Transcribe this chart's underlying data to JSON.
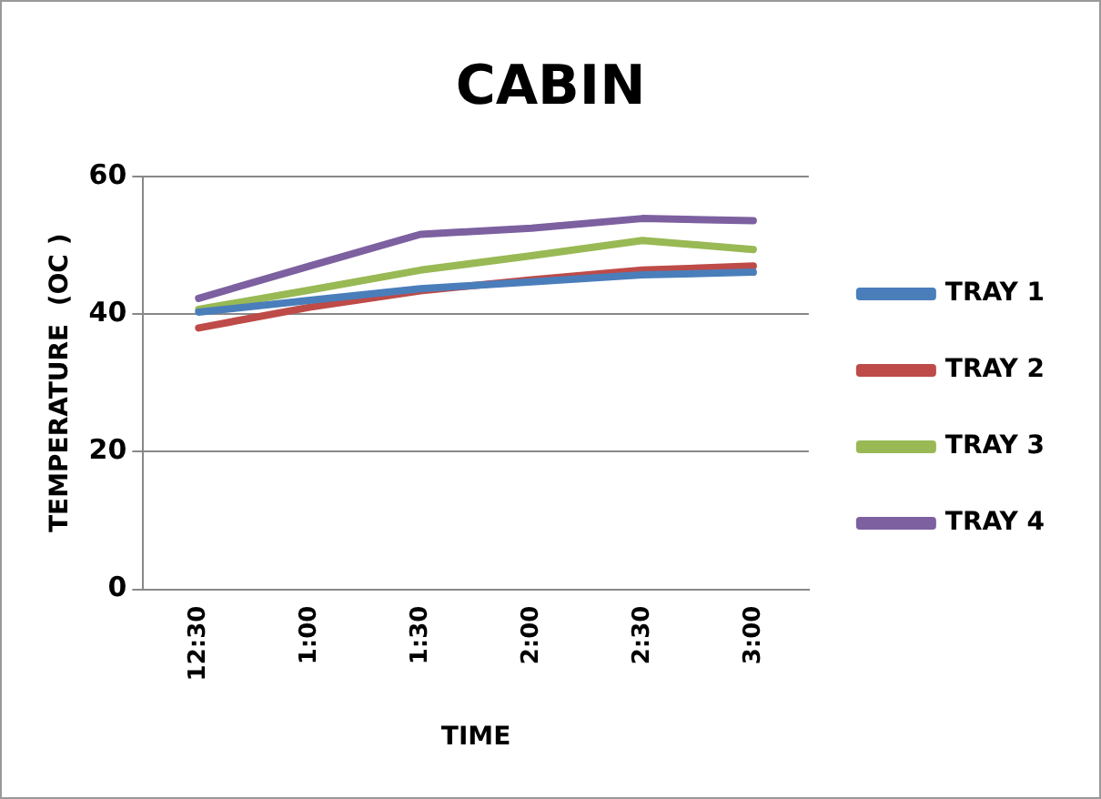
{
  "chart_data": {
    "type": "line",
    "title": "CABIN",
    "xlabel": "TIME",
    "ylabel": "TEMPERATURE  (OC )",
    "categories": [
      "12:30",
      "1:00",
      "1:30",
      "2:00",
      "2:30",
      "3:00"
    ],
    "series": [
      {
        "name": "TRAY 1",
        "color": "#4a7ebb",
        "values": [
          40.3,
          42,
          43.7,
          44.7,
          45.7,
          46.1
        ]
      },
      {
        "name": "TRAY 2",
        "color": "#be4b48",
        "values": [
          38,
          41,
          43.4,
          45,
          46.4,
          47
        ]
      },
      {
        "name": "TRAY 3",
        "color": "#98b954",
        "values": [
          40.7,
          43.5,
          46.4,
          48.5,
          50.7,
          49.4
        ]
      },
      {
        "name": "TRAY 4",
        "color": "#7d60a0",
        "values": [
          42.3,
          47,
          51.6,
          52.5,
          53.9,
          53.6
        ]
      }
    ],
    "ylim": [
      0,
      60
    ],
    "yticks": [
      0,
      20,
      40,
      60
    ],
    "grid": "y",
    "legend": "right",
    "marker": "none",
    "line_style": "solid"
  }
}
